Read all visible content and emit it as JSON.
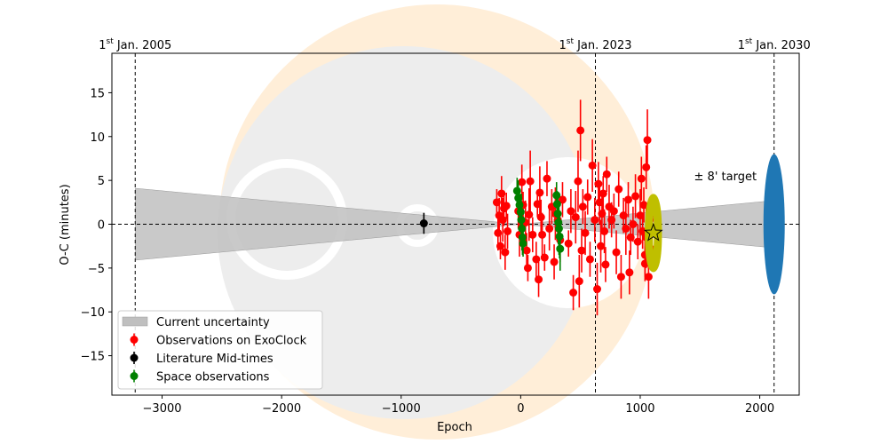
{
  "chart_data": {
    "type": "scatter",
    "xlabel": "Epoch",
    "ylabel": "O-C (minutes)",
    "xlim": [
      -3420,
      2330
    ],
    "ylim": [
      -19.5,
      19.5
    ],
    "xticks": [
      -3000,
      -2000,
      -1000,
      0,
      1000,
      2000
    ],
    "xtick_labels": [
      "−3000",
      "−2000",
      "−1000",
      "0",
      "1000",
      "2000"
    ],
    "yticks": [
      -15,
      -10,
      -5,
      0,
      5,
      10,
      15
    ],
    "ytick_labels": [
      "−15",
      "−10",
      "−5",
      "0",
      "5",
      "10",
      "15"
    ],
    "grid": false,
    "legend_position": "lower-left",
    "date_markers": [
      {
        "epoch": -3225,
        "label_sup": "st",
        "label_num": "1",
        "label_rest": " Jan. 2005"
      },
      {
        "epoch": 625,
        "label_sup": "st",
        "label_num": "1",
        "label_rest": " Jan. 2023"
      },
      {
        "epoch": 2120,
        "label_sup": "st",
        "label_num": "1",
        "label_rest": " Jan. 2030"
      }
    ],
    "uncertainty_band": {
      "name": "Current uncertainty",
      "color": "#bfbfbf",
      "polygon": [
        [
          -3225,
          4.1
        ],
        [
          0,
          0.0
        ],
        [
          2120,
          2.7
        ],
        [
          2120,
          -2.7
        ],
        [
          0,
          0.0
        ],
        [
          -3225,
          -4.1
        ]
      ]
    },
    "target_annotation": {
      "text": "± 8' target",
      "x": 1450,
      "y": 5.5
    },
    "target_ellipse": {
      "x": 2120,
      "y": 0,
      "half_width": 90,
      "half_height": 8,
      "color": "#1f77b4"
    },
    "highlight_ring": {
      "x": 1110,
      "y": -1,
      "half_width": 285,
      "half_height": 4.0,
      "color": "#bfbf00"
    },
    "highlight_star": {
      "x": 1110,
      "y": -1,
      "color": "#bfbf00"
    },
    "series": [
      {
        "name": "Observations on ExoClock",
        "color": "#ff0000",
        "points": [
          [
            -180,
            1.0,
            2.0
          ],
          [
            -170,
            -2.5,
            1.5
          ],
          [
            -160,
            3.5,
            2.0
          ],
          [
            -150,
            0.5,
            2.5
          ],
          [
            -140,
            1.8,
            2.0
          ],
          [
            -130,
            -3.2,
            2.0
          ],
          [
            -120,
            2.1,
            1.5
          ],
          [
            -110,
            -0.8,
            2.0
          ],
          [
            -200,
            2.5,
            1.5
          ],
          [
            -190,
            -1.0,
            2.0
          ],
          [
            -20,
            1.5,
            2.0
          ],
          [
            -10,
            -1.2,
            2.5
          ],
          [
            10,
            4.8,
            2.0
          ],
          [
            20,
            2.2,
            1.5
          ],
          [
            40,
            0.2,
            2.5
          ],
          [
            50,
            -3.0,
            2.0
          ],
          [
            60,
            -5.0,
            1.5
          ],
          [
            70,
            1.1,
            3.0
          ],
          [
            80,
            4.9,
            3.5
          ],
          [
            100,
            -1.2,
            2.0
          ],
          [
            130,
            -4.0,
            2.0
          ],
          [
            140,
            2.3,
            1.5
          ],
          [
            150,
            -6.3,
            2.0
          ],
          [
            160,
            3.6,
            3.0
          ],
          [
            170,
            0.8,
            2.0
          ],
          [
            180,
            -1.2,
            2.5
          ],
          [
            200,
            -3.8,
            1.5
          ],
          [
            220,
            5.2,
            2.0
          ],
          [
            240,
            -0.5,
            2.5
          ],
          [
            260,
            2.0,
            2.0
          ],
          [
            280,
            -4.3,
            2.0
          ],
          [
            290,
            1.2,
            3.0
          ],
          [
            310,
            0.5,
            2.0
          ],
          [
            330,
            -1.8,
            2.5
          ],
          [
            350,
            2.8,
            2.0
          ],
          [
            400,
            -2.2,
            1.5
          ],
          [
            420,
            1.5,
            2.5
          ],
          [
            440,
            -7.8,
            2.0
          ],
          [
            460,
            0.8,
            3.0
          ],
          [
            480,
            4.9,
            3.5
          ],
          [
            490,
            -6.5,
            3.0
          ],
          [
            500,
            10.7,
            3.5
          ],
          [
            510,
            -3.0,
            2.5
          ],
          [
            520,
            2.0,
            2.0
          ],
          [
            540,
            -1.0,
            2.5
          ],
          [
            560,
            3.1,
            2.0
          ],
          [
            580,
            -4.0,
            2.0
          ],
          [
            600,
            6.7,
            3.0
          ],
          [
            620,
            0.5,
            2.5
          ],
          [
            640,
            -7.4,
            3.0
          ],
          [
            650,
            4.6,
            2.5
          ],
          [
            660,
            2.5,
            2.5
          ],
          [
            670,
            -2.5,
            3.0
          ],
          [
            680,
            1.2,
            2.0
          ],
          [
            690,
            3.5,
            2.0
          ],
          [
            700,
            -0.8,
            2.5
          ],
          [
            710,
            -4.6,
            2.0
          ],
          [
            720,
            5.7,
            2.0
          ],
          [
            740,
            2.0,
            2.5
          ],
          [
            760,
            0.5,
            2.0
          ],
          [
            780,
            1.5,
            2.0
          ],
          [
            800,
            -3.2,
            2.5
          ],
          [
            820,
            4.0,
            2.0
          ],
          [
            840,
            -6.0,
            2.5
          ],
          [
            860,
            1.0,
            2.0
          ],
          [
            880,
            -0.5,
            3.0
          ],
          [
            900,
            2.8,
            2.0
          ],
          [
            910,
            -5.5,
            2.5
          ],
          [
            920,
            -1.5,
            2.0
          ],
          [
            940,
            0.0,
            2.0
          ],
          [
            960,
            3.2,
            2.5
          ],
          [
            980,
            -2.0,
            2.0
          ],
          [
            1000,
            1.0,
            3.0
          ],
          [
            1010,
            5.2,
            2.5
          ],
          [
            1020,
            -0.8,
            2.0
          ],
          [
            1030,
            2.2,
            2.0
          ],
          [
            1040,
            -3.5,
            2.5
          ],
          [
            1050,
            -1.5,
            3.5
          ],
          [
            1060,
            9.6,
            3.5
          ],
          [
            1070,
            -6.0,
            2.5
          ],
          [
            1080,
            0.5,
            2.5
          ],
          [
            1090,
            -2.8,
            2.0
          ],
          [
            1100,
            1.2,
            2.0
          ],
          [
            1050,
            6.5,
            2.5
          ],
          [
            1040,
            -4.5,
            2.0
          ]
        ]
      },
      {
        "name": "Literature Mid-times",
        "color": "#000000",
        "points": [
          [
            -810,
            0.1,
            1.2
          ]
        ]
      },
      {
        "name": "Space observations",
        "color": "#008000",
        "points": [
          [
            -30,
            3.8,
            1.5
          ],
          [
            -20,
            3.0,
            2.0
          ],
          [
            -10,
            2.2,
            1.5
          ],
          [
            0,
            1.4,
            2.0
          ],
          [
            5,
            0.5,
            3.0
          ],
          [
            10,
            -0.5,
            2.5
          ],
          [
            15,
            -1.5,
            2.0
          ],
          [
            20,
            -2.2,
            1.5
          ],
          [
            300,
            3.3,
            1.5
          ],
          [
            305,
            2.3,
            1.5
          ],
          [
            310,
            1.2,
            2.0
          ],
          [
            315,
            0.2,
            2.5
          ],
          [
            320,
            -0.5,
            3.0
          ],
          [
            325,
            -1.4,
            2.5
          ],
          [
            330,
            -2.8,
            2.5
          ]
        ]
      }
    ]
  }
}
